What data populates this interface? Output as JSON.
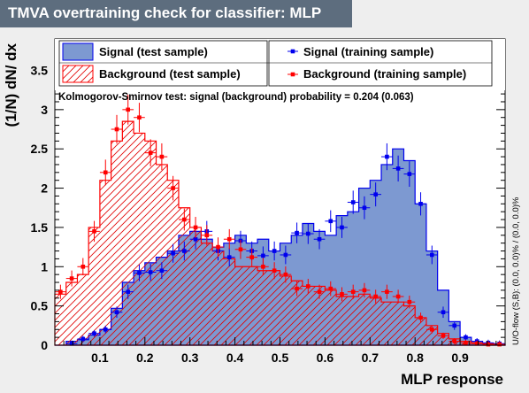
{
  "title": "TMVA overtraining check for classifier: MLP",
  "chart_data": {
    "type": "histogram",
    "xlabel": "MLP response",
    "ylabel": "(1/N) dN/ dx",
    "xlim": [
      0.0,
      1.0
    ],
    "ylim": [
      0,
      3.9
    ],
    "xticks": [
      "0.1",
      "0.2",
      "0.3",
      "0.4",
      "0.5",
      "0.6",
      "0.7",
      "0.8",
      "0.9"
    ],
    "yticks": [
      "0",
      "0.5",
      "1",
      "1.5",
      "2",
      "2.5",
      "3",
      "3.5"
    ],
    "bins": 40,
    "ks_text": "Kolmogorov-Smirnov test: signal (background) probability = 0.204 (0.063)",
    "overflow_text": "U/O-flow (S,B): (0.0, 0.0)% / (0.0, 0.0)%",
    "legend": {
      "signal_test": "Signal (test sample)",
      "background_test": "Background (test sample)",
      "signal_train": "Signal (training sample)",
      "background_train": "Background (training sample)"
    },
    "colors": {
      "signal_fill": "#7d99d1",
      "signal_line": "#0000ee",
      "background_line": "#ff0000",
      "signal_points": "#0000ee",
      "background_points": "#ff0000"
    },
    "series": [
      {
        "name": "Signal (test sample)",
        "style": "filled-hist",
        "values": [
          0,
          0.05,
          0.07,
          0.13,
          0.2,
          0.47,
          0.8,
          0.95,
          1.05,
          1.12,
          1.2,
          1.4,
          1.45,
          1.35,
          1.25,
          1.3,
          1.4,
          1.3,
          1.35,
          1.2,
          1.3,
          1.4,
          1.55,
          1.45,
          1.4,
          1.65,
          1.7,
          2.0,
          2.1,
          2.3,
          2.5,
          2.35,
          1.8,
          1.2,
          0.7,
          0.3,
          0.1,
          0.05,
          0.02,
          0.01
        ]
      },
      {
        "name": "Background (test sample)",
        "style": "hatched-hist",
        "values": [
          0.65,
          0.8,
          0.9,
          1.5,
          2.1,
          2.6,
          2.85,
          2.7,
          2.6,
          2.3,
          2.1,
          1.75,
          1.5,
          1.3,
          1.2,
          1.1,
          1.0,
          1.0,
          0.95,
          0.95,
          0.88,
          0.82,
          0.75,
          0.75,
          0.7,
          0.62,
          0.62,
          0.65,
          0.6,
          0.55,
          0.55,
          0.5,
          0.35,
          0.25,
          0.15,
          0.08,
          0.05,
          0.03,
          0.02,
          0.01
        ]
      },
      {
        "name": "Signal (training sample)",
        "style": "points",
        "values": [
          0,
          0.02,
          0.08,
          0.15,
          0.2,
          0.42,
          0.68,
          0.92,
          0.93,
          0.95,
          1.17,
          1.2,
          1.35,
          1.45,
          1.2,
          1.12,
          1.33,
          1.2,
          1.14,
          1.2,
          1.15,
          1.43,
          1.42,
          1.35,
          1.58,
          1.5,
          1.82,
          1.75,
          1.92,
          2.4,
          2.25,
          2.18,
          1.8,
          1.15,
          0.42,
          0.25,
          0.1,
          0.05,
          0.03,
          0.02
        ]
      },
      {
        "name": "Background (training sample)",
        "style": "points",
        "values": [
          0.68,
          0.85,
          1.0,
          1.45,
          2.2,
          2.75,
          3.0,
          2.9,
          2.45,
          2.4,
          2.0,
          1.6,
          1.5,
          1.4,
          1.25,
          1.35,
          1.22,
          1.12,
          1.0,
          0.95,
          0.9,
          0.72,
          0.75,
          0.68,
          0.72,
          0.65,
          0.68,
          0.7,
          0.62,
          0.68,
          0.62,
          0.55,
          0.35,
          0.2,
          0.12,
          0.05,
          0.03,
          0.02,
          0.01,
          0.01
        ]
      }
    ]
  }
}
